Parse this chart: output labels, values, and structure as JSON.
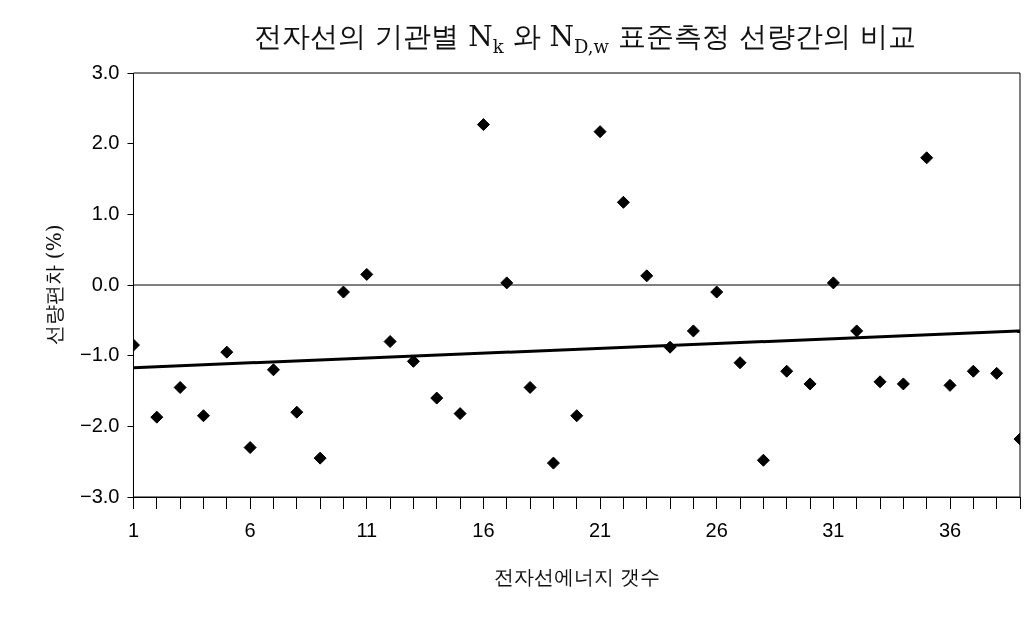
{
  "chart_data": {
    "type": "scatter",
    "title": "전자선의 기관별 N$_{k}$ 와 N$_{D,w}$ 표준측정 선량간의 비교",
    "xlabel": "전자선에너지 갯수",
    "ylabel": "선량편차 (%)",
    "x": [
      1,
      2,
      3,
      4,
      5,
      6,
      7,
      8,
      9,
      10,
      11,
      12,
      13,
      14,
      15,
      16,
      17,
      18,
      19,
      20,
      21,
      22,
      23,
      24,
      25,
      26,
      27,
      28,
      29,
      30,
      31,
      32,
      33,
      34,
      35,
      36,
      37,
      38,
      39
    ],
    "series": [
      {
        "color": "#000000",
        "marker": "diamond",
        "values": [
          -0.85,
          -1.87,
          -1.45,
          -1.85,
          -0.95,
          -2.3,
          -1.2,
          -1.8,
          -2.45,
          -0.1,
          0.15,
          -0.8,
          -1.08,
          -1.6,
          -1.82,
          2.27,
          0.03,
          -1.45,
          -2.52,
          -1.85,
          2.17,
          1.17,
          0.13,
          -0.88,
          -0.65,
          -0.1,
          -1.1,
          -2.48,
          -1.22,
          -1.4,
          0.03,
          -0.65,
          -1.37,
          -1.4,
          1.8,
          -1.42,
          -1.22,
          -1.25,
          -2.18
        ]
      },
      {
        "type": "line",
        "color": "#000000",
        "marker": "none",
        "line_style": "solid",
        "x": [
          1,
          39
        ],
        "values": [
          -1.17,
          -0.65
        ]
      }
    ],
    "xlim": [
      1,
      39
    ],
    "xticks": [
      1,
      {
        "value": 2,
        "label": null
      },
      {
        "value": 3,
        "label": null
      },
      {
        "value": 4,
        "label": null
      },
      {
        "value": 5,
        "label": null
      },
      6,
      {
        "value": 7,
        "label": null
      },
      {
        "value": 8,
        "label": null
      },
      {
        "value": 9,
        "label": null
      },
      {
        "value": 10,
        "label": null
      },
      11,
      {
        "value": 12,
        "label": null
      },
      {
        "value": 13,
        "label": null
      },
      {
        "value": 14,
        "label": null
      },
      {
        "value": 15,
        "label": null
      },
      16,
      {
        "value": 17,
        "label": null
      },
      {
        "value": 18,
        "label": null
      },
      {
        "value": 19,
        "label": null
      },
      {
        "value": 20,
        "label": null
      },
      21,
      {
        "value": 22,
        "label": null
      },
      {
        "value": 23,
        "label": null
      },
      {
        "value": 24,
        "label": null
      },
      {
        "value": 25,
        "label": null
      },
      26,
      {
        "value": 27,
        "label": null
      },
      {
        "value": 28,
        "label": null
      },
      {
        "value": 29,
        "label": null
      },
      {
        "value": 30,
        "label": null
      },
      31,
      {
        "value": 32,
        "label": null
      },
      {
        "value": 33,
        "label": null
      },
      {
        "value": 34,
        "label": null
      },
      {
        "value": 35,
        "label": null
      },
      36,
      {
        "value": 37,
        "label": null
      },
      {
        "value": 38,
        "label": null
      },
      {
        "value": 39,
        "label": null
      }
    ],
    "ylim": [
      -3,
      3
    ],
    "yticks": [
      {
        "value": -3,
        "label": "−3.0"
      },
      {
        "value": -2,
        "label": "−2.0"
      },
      {
        "value": -1,
        "label": "−1.0"
      },
      {
        "value": 0,
        "label": "0.0"
      },
      {
        "value": 1,
        "label": "1.0"
      },
      {
        "value": 2,
        "label": "2.0"
      },
      {
        "value": 3,
        "label": "3.0"
      }
    ],
    "ref_lines": [
      {
        "axis": "y",
        "value": 0,
        "color": "#000000"
      }
    ],
    "grid": false,
    "legend": false
  }
}
